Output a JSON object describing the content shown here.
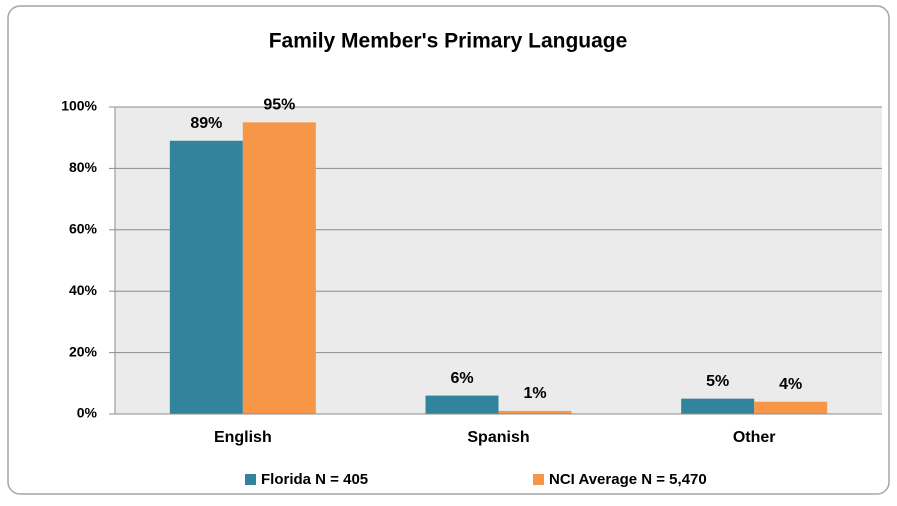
{
  "chart_data": {
    "type": "bar",
    "title": "Family Member's Primary Language",
    "categories": [
      "English",
      "Spanish",
      "Other"
    ],
    "series": [
      {
        "name": "Florida N = 405",
        "color": "#31849b",
        "values": [
          89,
          6,
          5
        ],
        "value_labels": [
          "89%",
          "6%",
          "5%"
        ]
      },
      {
        "name": "NCI Average N = 5,470",
        "color": "#f79646",
        "values": [
          95,
          1,
          4
        ],
        "value_labels": [
          "95%",
          "1%",
          "4%"
        ]
      }
    ],
    "ylim": [
      0,
      100
    ],
    "yticks": [
      {
        "value": 0,
        "label": "0%"
      },
      {
        "value": 20,
        "label": "20%"
      },
      {
        "value": 40,
        "label": "40%"
      },
      {
        "value": 60,
        "label": "60%"
      },
      {
        "value": 80,
        "label": "80%"
      },
      {
        "value": 100,
        "label": "100%"
      }
    ],
    "grid": true,
    "legend": "bottom"
  }
}
